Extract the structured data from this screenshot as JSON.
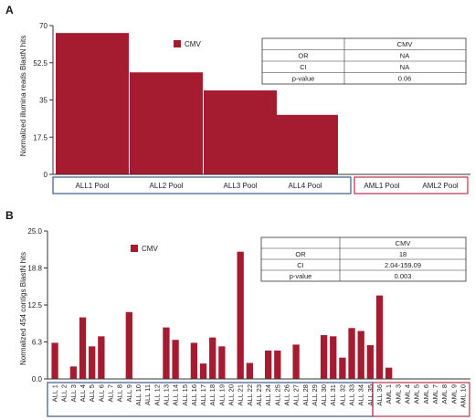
{
  "colors": {
    "bar": "#a51c30",
    "axis": "#333333",
    "group_a": "#3b5b86",
    "group_b": "#b5334a"
  },
  "chart_data": [
    {
      "panel": "A",
      "type": "bar",
      "ylabel": "Normalized illumina reads BlastN hits",
      "ylim": [
        0,
        70
      ],
      "yticks": [
        "0",
        "17.5",
        "35",
        "52.5",
        "70"
      ],
      "categories": [
        "ALL1 Pool",
        "ALL2 Pool",
        "ALL3 Pool",
        "ALL4 Pool",
        "AML1 Pool",
        "AML2 Pool"
      ],
      "series": [
        {
          "name": "CMV",
          "values": [
            66.5,
            48,
            39.5,
            28,
            0,
            0
          ]
        }
      ],
      "legend": "top-center",
      "stats_table": {
        "header": [
          "",
          "CMV"
        ],
        "rows": [
          [
            "OR",
            "NA"
          ],
          [
            "CI",
            "NA"
          ],
          [
            "p-value",
            "0.06"
          ]
        ]
      }
    },
    {
      "panel": "B",
      "type": "bar",
      "ylabel": "Normalized 454 contigs BlastN hits",
      "ylim": [
        0,
        25
      ],
      "yticks": [
        "0.0",
        "6.3",
        "12.5",
        "18.8",
        "25.0"
      ],
      "categories": [
        "ALL 1",
        "ALL 2",
        "ALL 3",
        "ALL 4",
        "ALL 5",
        "ALL 6",
        "ALL 7",
        "ALL 8",
        "ALL 9",
        "ALL 10",
        "ALL 11",
        "ALL 12",
        "ALL 13",
        "ALL 14",
        "ALL 15",
        "ALL 16",
        "ALL 17",
        "ALL 18",
        "ALL 19",
        "ALL 20",
        "ALL 21",
        "ALL 22",
        "ALL 23",
        "ALL 24",
        "ALL 25",
        "ALL 26",
        "ALL 27",
        "ALL 28",
        "ALL 29",
        "ALL 30",
        "ALL 31",
        "ALL 32",
        "ALL 33",
        "ALL 34",
        "ALL 35",
        "ALL 36",
        "AML 1",
        "AML 3",
        "AML 4",
        "AML 5",
        "AML 6",
        "AML 7",
        "AML 8",
        "AML 9",
        "AML 10"
      ],
      "series": [
        {
          "name": "CMV",
          "values": [
            6.1,
            0,
            2.1,
            10.4,
            5.5,
            7.2,
            0,
            0,
            11.3,
            0,
            0,
            0,
            8.7,
            6.6,
            0,
            6.1,
            2.6,
            7.0,
            5.5,
            0,
            21.5,
            2.7,
            0,
            4.8,
            4.8,
            0,
            5.8,
            0,
            0,
            7.4,
            7.2,
            3.6,
            8.6,
            8.1,
            5.7,
            14.1,
            1.9,
            0,
            0,
            0,
            0,
            0,
            0,
            0,
            0
          ]
        }
      ],
      "legend": "top-left",
      "stats_table": {
        "header": [
          "",
          "CMV"
        ],
        "rows": [
          [
            "OR",
            "18"
          ],
          [
            "CI",
            "2.04-159.09"
          ],
          [
            "p-value",
            "0.003"
          ]
        ]
      }
    }
  ]
}
